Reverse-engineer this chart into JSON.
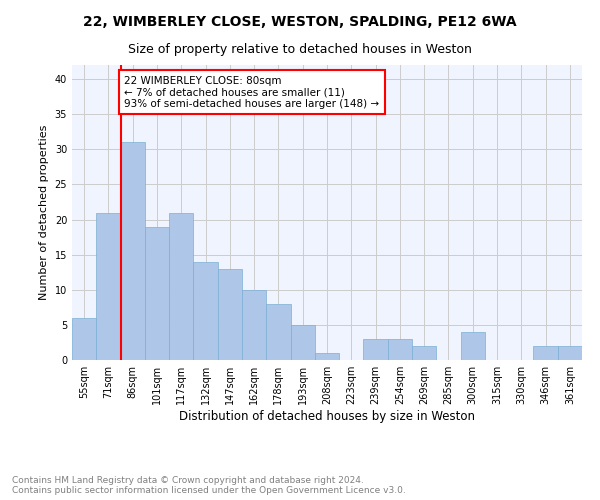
{
  "title1": "22, WIMBERLEY CLOSE, WESTON, SPALDING, PE12 6WA",
  "title2": "Size of property relative to detached houses in Weston",
  "xlabel": "Distribution of detached houses by size in Weston",
  "ylabel": "Number of detached properties",
  "footer": "Contains HM Land Registry data © Crown copyright and database right 2024.\nContains public sector information licensed under the Open Government Licence v3.0.",
  "categories": [
    "55sqm",
    "71sqm",
    "86sqm",
    "101sqm",
    "117sqm",
    "132sqm",
    "147sqm",
    "162sqm",
    "178sqm",
    "193sqm",
    "208sqm",
    "223sqm",
    "239sqm",
    "254sqm",
    "269sqm",
    "285sqm",
    "300sqm",
    "315sqm",
    "330sqm",
    "346sqm",
    "361sqm"
  ],
  "values": [
    6,
    21,
    31,
    19,
    21,
    14,
    13,
    10,
    8,
    5,
    1,
    0,
    3,
    3,
    2,
    0,
    4,
    0,
    0,
    2,
    2
  ],
  "bar_color": "#aec6e8",
  "bar_edge_color": "#7bafd4",
  "vline_x": 1.5,
  "vline_color": "red",
  "annotation_text": "22 WIMBERLEY CLOSE: 80sqm\n← 7% of detached houses are smaller (11)\n93% of semi-detached houses are larger (148) →",
  "annotation_box_color": "white",
  "annotation_box_edge_color": "red",
  "ylim": [
    0,
    42
  ],
  "yticks": [
    0,
    5,
    10,
    15,
    20,
    25,
    30,
    35,
    40
  ],
  "title1_fontsize": 10,
  "title2_fontsize": 9,
  "ylabel_fontsize": 8,
  "xlabel_fontsize": 8.5,
  "tick_fontsize": 7,
  "footer_fontsize": 6.5,
  "annot_fontsize": 7.5,
  "grid_color": "#cccccc",
  "background_color": "#f0f4ff"
}
